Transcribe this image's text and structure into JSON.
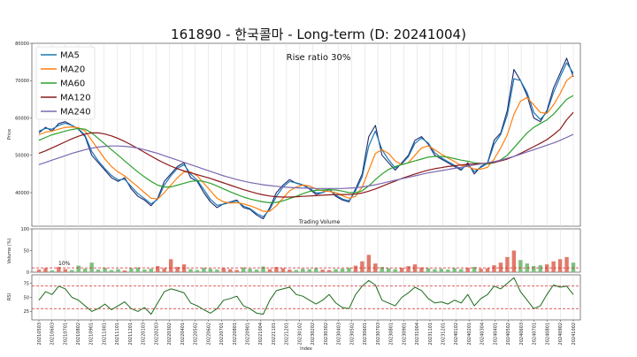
{
  "chart_data": {
    "title": "161890 - 한국콜마 - Long-term (D: 20241004)",
    "panels": [
      {
        "id": "price",
        "type": "line",
        "ylabel": "Price",
        "ylim": [
          31000,
          80000
        ],
        "yticks": [
          40000,
          50000,
          60000,
          70000,
          80000
        ],
        "annotations": [
          "Rise ratio 30%",
          "Trading Volume"
        ],
        "legend": {
          "placement": "top-left",
          "entries": [
            "MA5",
            "MA20",
            "MA60",
            "MA120",
            "MA240"
          ]
        },
        "series": [
          {
            "name": "Price",
            "color": "#1a2b6b",
            "values": [
              56000,
              57500,
              56500,
              58500,
              59000,
              58000,
              57000,
              55000,
              50000,
              48000,
              46000,
              44000,
              43000,
              44000,
              41000,
              39000,
              38000,
              36500,
              38500,
              43000,
              45000,
              47000,
              48000,
              44000,
              43000,
              40000,
              37500,
              36000,
              37000,
              37500,
              38000,
              36000,
              35500,
              34000,
              33000,
              36000,
              40000,
              42000,
              43500,
              42500,
              42000,
              41000,
              39500,
              40000,
              41000,
              39000,
              38000,
              37500,
              41000,
              45000,
              55000,
              58000,
              50000,
              48000,
              46000,
              48000,
              50000,
              54000,
              55000,
              53000,
              50000,
              49000,
              48000,
              47000,
              46000,
              48000,
              45000,
              47000,
              48000,
              54000,
              56000,
              62000,
              73000,
              70000,
              66000,
              60000,
              59000,
              62000,
              68000,
              72000,
              76000,
              71000
            ]
          },
          {
            "name": "MA5",
            "color": "#1f77b4",
            "values": [
              56500,
              57200,
              57000,
              58000,
              58600,
              58000,
              57100,
              55300,
              51000,
              48500,
              46400,
              44600,
              43400,
              43600,
              41600,
              39700,
              38400,
              37000,
              38200,
              42000,
              44500,
              46500,
              47500,
              45000,
              43300,
              40800,
              38200,
              36600,
              36900,
              37400,
              37800,
              36400,
              35700,
              34400,
              33500,
              35500,
              39000,
              41500,
              43000,
              42600,
              42100,
              41200,
              39900,
              40000,
              40800,
              39300,
              38300,
              37800,
              40500,
              44200,
              52500,
              56500,
              51500,
              48800,
              46600,
              47700,
              49600,
              53200,
              54600,
              53300,
              50700,
              49300,
              48300,
              47300,
              46300,
              47500,
              45600,
              46800,
              47800,
              53000,
              55600,
              60800,
              70500,
              70000,
              66800,
              61500,
              59600,
              61600,
              66800,
              71000,
              74800,
              72000
            ]
          },
          {
            "name": "MA20",
            "color": "#ff7f0e",
            "values": [
              55500,
              56200,
              56500,
              57000,
              57500,
              57600,
              57400,
              56500,
              54000,
              51500,
              49000,
              47000,
              45500,
              44500,
              43000,
              41500,
              40000,
              38500,
              38300,
              40000,
              42000,
              44000,
              45500,
              45500,
              44500,
              42500,
              40500,
              38500,
              37500,
              37200,
              37300,
              37000,
              36500,
              35800,
              35000,
              35000,
              36500,
              38500,
              40500,
              41500,
              42000,
              41800,
              41000,
              40500,
              40300,
              40000,
              39200,
              38500,
              39000,
              41500,
              46000,
              50500,
              51500,
              50500,
              48500,
              47500,
              48000,
              50000,
              52000,
              52500,
              51500,
              50300,
              49300,
              48300,
              47300,
              47000,
              46300,
              46300,
              46800,
              49000,
              52000,
              55500,
              61000,
              64500,
              65500,
              63500,
              61500,
              61200,
              63500,
              66500,
              70000,
              71500
            ]
          },
          {
            "name": "MA60",
            "color": "#2ca02c",
            "values": [
              54000,
              54800,
              55500,
              56000,
              56500,
              56900,
              57200,
              57000,
              56000,
              54500,
              53000,
              51500,
              50000,
              48500,
              47000,
              45500,
              44200,
              43000,
              42000,
              41500,
              41500,
              42000,
              42500,
              43000,
              43200,
              43000,
              42500,
              41800,
              41000,
              40200,
              39500,
              38800,
              38300,
              37900,
              37500,
              37300,
              37400,
              37800,
              38400,
              39000,
              39700,
              40300,
              40600,
              40700,
              40800,
              40700,
              40400,
              40000,
              40000,
              40500,
              41800,
              43500,
              45000,
              46200,
              47000,
              47500,
              48000,
              48500,
              49000,
              49500,
              49700,
              49700,
              49500,
              49100,
              48700,
              48400,
              48000,
              47800,
              47700,
              48000,
              48800,
              50000,
              52000,
              54000,
              56000,
              57500,
              58500,
              59500,
              61000,
              63000,
              65000,
              66000
            ]
          },
          {
            "name": "MA120",
            "color": "#8b1a1a",
            "values": [
              50500,
              51200,
              52000,
              52800,
              53600,
              54400,
              55100,
              55700,
              56000,
              56000,
              55700,
              55200,
              54500,
              53700,
              52800,
              51800,
              50800,
              49800,
              48800,
              47900,
              47100,
              46400,
              45800,
              45300,
              44800,
              44300,
              43800,
              43200,
              42600,
              42000,
              41400,
              40800,
              40300,
              39800,
              39400,
              39100,
              38900,
              38800,
              38800,
              38900,
              39000,
              39100,
              39200,
              39300,
              39400,
              39500,
              39500,
              39500,
              39600,
              39900,
              40400,
              41000,
              41700,
              42400,
              43100,
              43800,
              44400,
              45000,
              45500,
              46000,
              46400,
              46700,
              47000,
              47200,
              47400,
              47600,
              47700,
              47800,
              47900,
              48100,
              48500,
              49000,
              49700,
              50500,
              51400,
              52300,
              53200,
              54200,
              55500,
              57000,
              59500,
              61500
            ]
          },
          {
            "name": "MA240",
            "color": "#7b68b0",
            "values": [
              47500,
              48100,
              48700,
              49300,
              49900,
              50500,
              51000,
              51500,
              51900,
              52200,
              52400,
              52500,
              52500,
              52400,
              52200,
              51900,
              51500,
              51000,
              50500,
              49900,
              49300,
              48700,
              48100,
              47500,
              46900,
              46300,
              45700,
              45100,
              44500,
              44000,
              43500,
              43100,
              42700,
              42400,
              42100,
              41900,
              41700,
              41500,
              41400,
              41300,
              41200,
              41200,
              41100,
              41100,
              41100,
              41100,
              41100,
              41200,
              41300,
              41500,
              41800,
              42100,
              42500,
              42900,
              43300,
              43700,
              44100,
              44500,
              44900,
              45300,
              45600,
              45900,
              46200,
              46500,
              46800,
              47100,
              47400,
              47700,
              48000,
              48300,
              48700,
              49200,
              49700,
              50300,
              50900,
              51500,
              52100,
              52700,
              53300,
              54000,
              54800,
              55600
            ]
          }
        ]
      },
      {
        "id": "volume",
        "type": "bar",
        "ylabel": "Volume (%)",
        "ylim": [
          0,
          100
        ],
        "yticks": [
          0,
          50,
          100
        ],
        "reference_line": {
          "value": 10,
          "label": "10%",
          "color": "#d62728"
        },
        "values": [
          6,
          9,
          4,
          12,
          7,
          5,
          15,
          8,
          22,
          6,
          10,
          5,
          7,
          4,
          9,
          11,
          6,
          8,
          14,
          9,
          30,
          12,
          18,
          7,
          5,
          10,
          8,
          6,
          9,
          7,
          5,
          11,
          8,
          6,
          13,
          7,
          12,
          9,
          6,
          5,
          8,
          7,
          9,
          6,
          5,
          7,
          8,
          10,
          15,
          25,
          40,
          20,
          12,
          9,
          7,
          10,
          14,
          18,
          11,
          9,
          7,
          8,
          6,
          9,
          7,
          10,
          12,
          8,
          9,
          16,
          22,
          35,
          50,
          28,
          20,
          14,
          16,
          18,
          25,
          30,
          35,
          22
        ]
      },
      {
        "id": "rsi",
        "type": "line",
        "ylabel": "RSI",
        "ylim": [
          10,
          90
        ],
        "yticks": [
          25,
          50,
          75
        ],
        "reference_lines": [
          {
            "value": 70,
            "color": "#d62728"
          },
          {
            "value": 30,
            "color": "#d62728"
          }
        ],
        "values": [
          45,
          60,
          55,
          70,
          65,
          50,
          45,
          35,
          25,
          30,
          38,
          28,
          35,
          42,
          30,
          25,
          32,
          20,
          40,
          60,
          65,
          62,
          58,
          40,
          35,
          28,
          22,
          30,
          45,
          48,
          52,
          35,
          30,
          22,
          20,
          45,
          62,
          65,
          68,
          55,
          52,
          45,
          38,
          45,
          55,
          40,
          32,
          30,
          55,
          70,
          80,
          72,
          45,
          40,
          35,
          50,
          58,
          68,
          62,
          48,
          40,
          42,
          38,
          45,
          40,
          55,
          35,
          48,
          55,
          70,
          65,
          75,
          85,
          60,
          45,
          30,
          35,
          55,
          72,
          68,
          70,
          55
        ]
      }
    ],
    "x": {
      "label": "Index",
      "tick_labels": [
        "20210503",
        "20210603",
        "20210701",
        "20210802",
        "20210901",
        "20211001",
        "20211101",
        "20211201",
        "20220103",
        "20220203",
        "20220302",
        "20220401",
        "20220502",
        "20220602",
        "20220701",
        "20220801",
        "20220901",
        "20221004",
        "20221101",
        "20221201",
        "20230102",
        "20230202",
        "20230302",
        "20230403",
        "20230502",
        "20230601",
        "20230703",
        "20230801",
        "20230901",
        "20231004",
        "20231101",
        "20231201",
        "20240102",
        "20240201",
        "20240304",
        "20240401",
        "20240502",
        "20240603",
        "20240701",
        "20240801",
        "20240902",
        "20241002"
      ]
    }
  }
}
